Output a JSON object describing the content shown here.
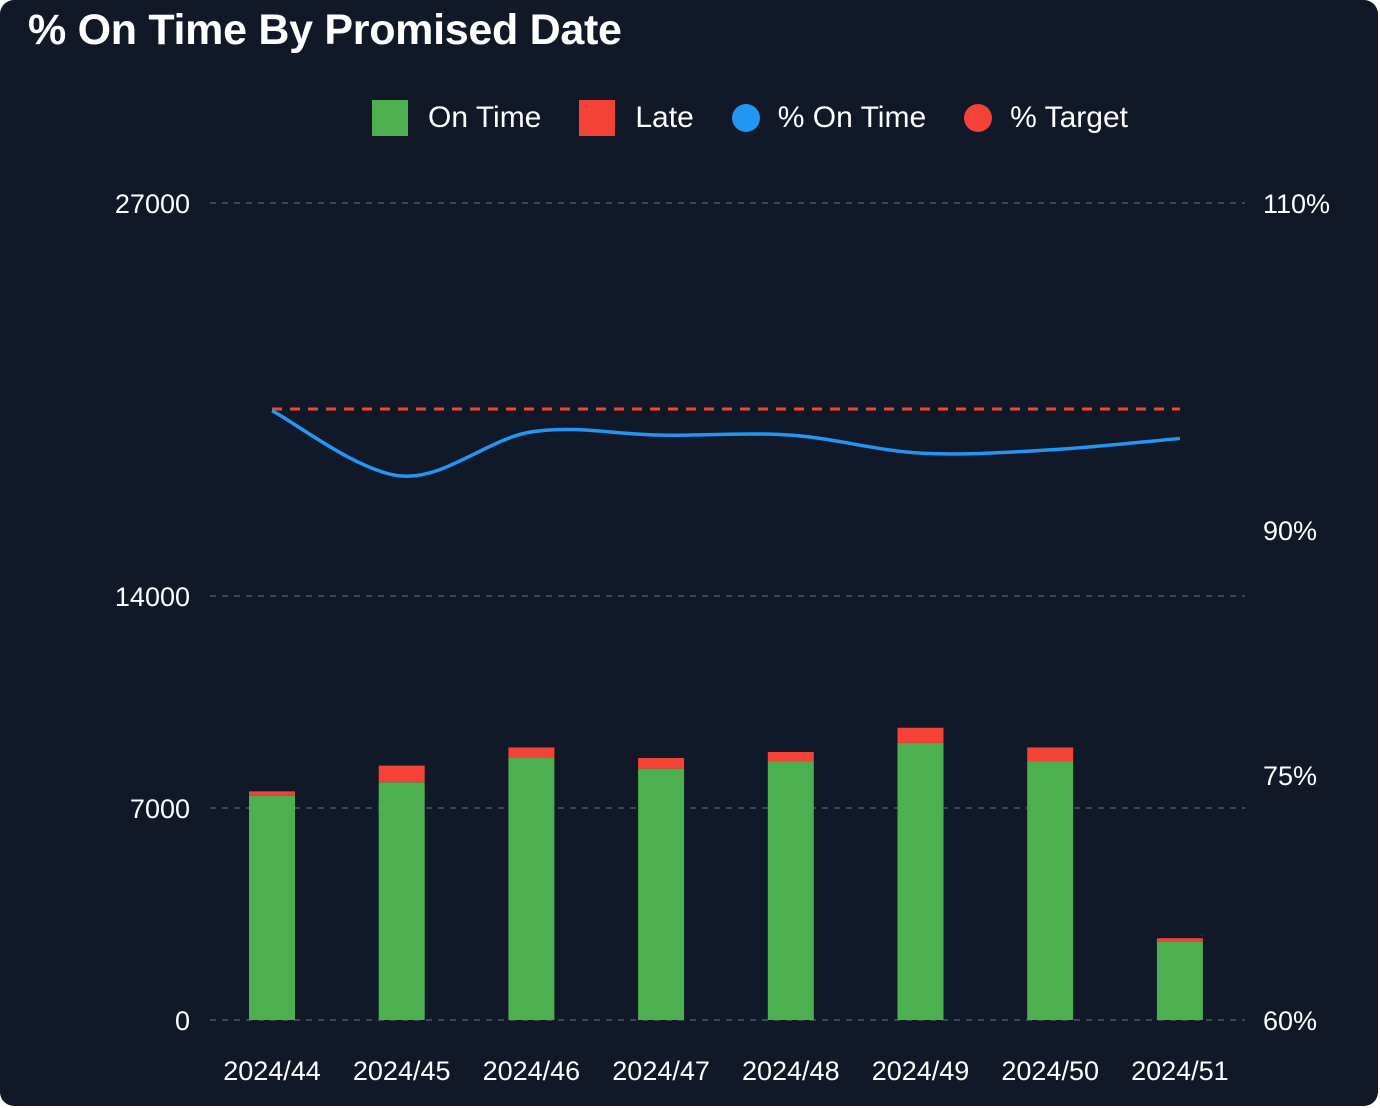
{
  "colors": {
    "background": "#111827",
    "on_time": "#4CAF50",
    "late": "#F44336",
    "pct_on_time": "#2196F3",
    "pct_target": "#F44336",
    "grid": "#4B5563"
  },
  "chart_data": {
    "type": "bar",
    "title": "% On Time By Promised Date",
    "categories": [
      "2024/44",
      "2024/45",
      "2024/46",
      "2024/47",
      "2024/48",
      "2024/49",
      "2024/50",
      "2024/51"
    ],
    "series": [
      {
        "name": "On Time",
        "kind": "bar",
        "stacked": true,
        "axis": "left",
        "values": [
          7400,
          7850,
          8650,
          8300,
          8550,
          9150,
          8550,
          2600
        ]
      },
      {
        "name": "Late",
        "kind": "bar",
        "stacked": true,
        "axis": "left",
        "values": [
          150,
          550,
          350,
          350,
          300,
          500,
          450,
          100
        ]
      },
      {
        "name": "% On Time",
        "kind": "line",
        "axis": "right",
        "values": [
          97.3,
          93.3,
          96.0,
          95.8,
          95.8,
          94.7,
          94.9,
          95.6
        ]
      },
      {
        "name": "% Target",
        "kind": "line",
        "style": "dashed",
        "axis": "right",
        "values": [
          97.4,
          97.4,
          97.4,
          97.4,
          97.4,
          97.4,
          97.4,
          97.4
        ]
      }
    ],
    "left_axis": {
      "ticks": [
        0,
        7000,
        14000,
        27000
      ],
      "labels": [
        "0",
        "7000",
        "14000",
        "27000"
      ]
    },
    "right_axis": {
      "ticks": [
        60,
        75,
        90,
        110
      ],
      "labels": [
        "60%",
        "75%",
        "90%",
        "110%"
      ]
    },
    "grid": true,
    "legend": {
      "position": "top",
      "entries": [
        "On Time",
        "Late",
        "% On Time",
        "% Target"
      ]
    }
  }
}
